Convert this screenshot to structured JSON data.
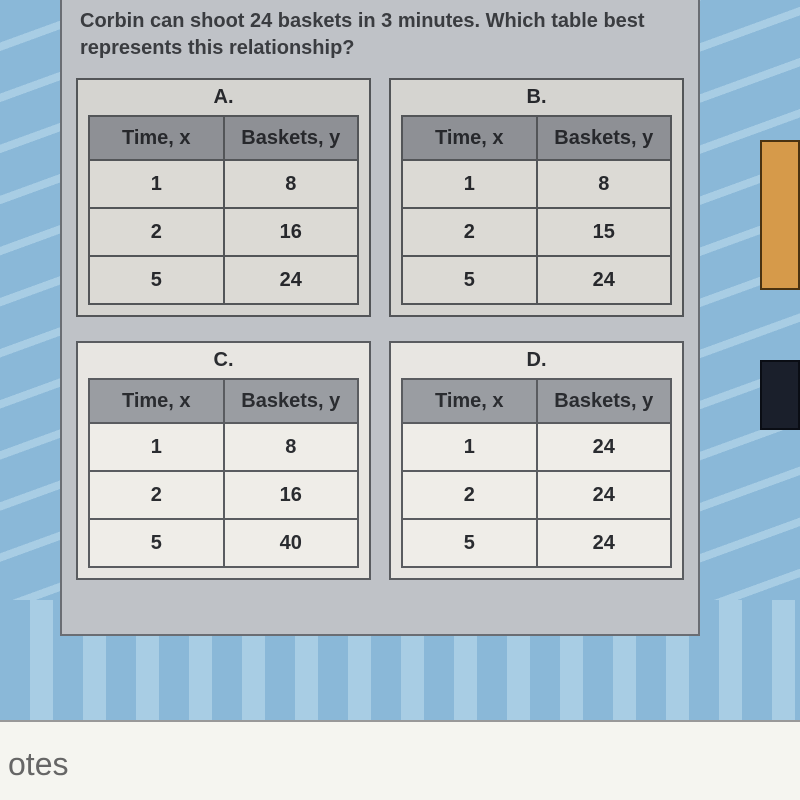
{
  "question": "Corbin can shoot 24 baskets in 3 minutes. Which table best represents this relationship?",
  "notes_label": "otes",
  "col_time": "Time, x",
  "col_baskets": "Baskets, y",
  "tables": {
    "A": {
      "label": "A.",
      "rows": [
        {
          "x": "1",
          "y": "8"
        },
        {
          "x": "2",
          "y": "16"
        },
        {
          "x": "5",
          "y": "24"
        }
      ]
    },
    "B": {
      "label": "B.",
      "rows": [
        {
          "x": "1",
          "y": "8"
        },
        {
          "x": "2",
          "y": "15"
        },
        {
          "x": "5",
          "y": "24"
        }
      ]
    },
    "C": {
      "label": "C.",
      "rows": [
        {
          "x": "1",
          "y": "8"
        },
        {
          "x": "2",
          "y": "16"
        },
        {
          "x": "5",
          "y": "40"
        }
      ]
    },
    "D": {
      "label": "D.",
      "rows": [
        {
          "x": "1",
          "y": "24"
        },
        {
          "x": "2",
          "y": "24"
        },
        {
          "x": "5",
          "y": "24"
        }
      ]
    }
  },
  "styling": {
    "panel_bg": "#bfc2c7",
    "panel_border": "#6a6d73",
    "table_border": "#5a5c60",
    "header_bg": "#9a9da2",
    "cell_bg": "#efede8",
    "block_bg": "#e8e6e2",
    "page_bg": "#8ab8d8",
    "stripe_bg": "#a8cde4",
    "font_weight": "bold",
    "font_size_cell": 20,
    "font_size_question": 20
  }
}
